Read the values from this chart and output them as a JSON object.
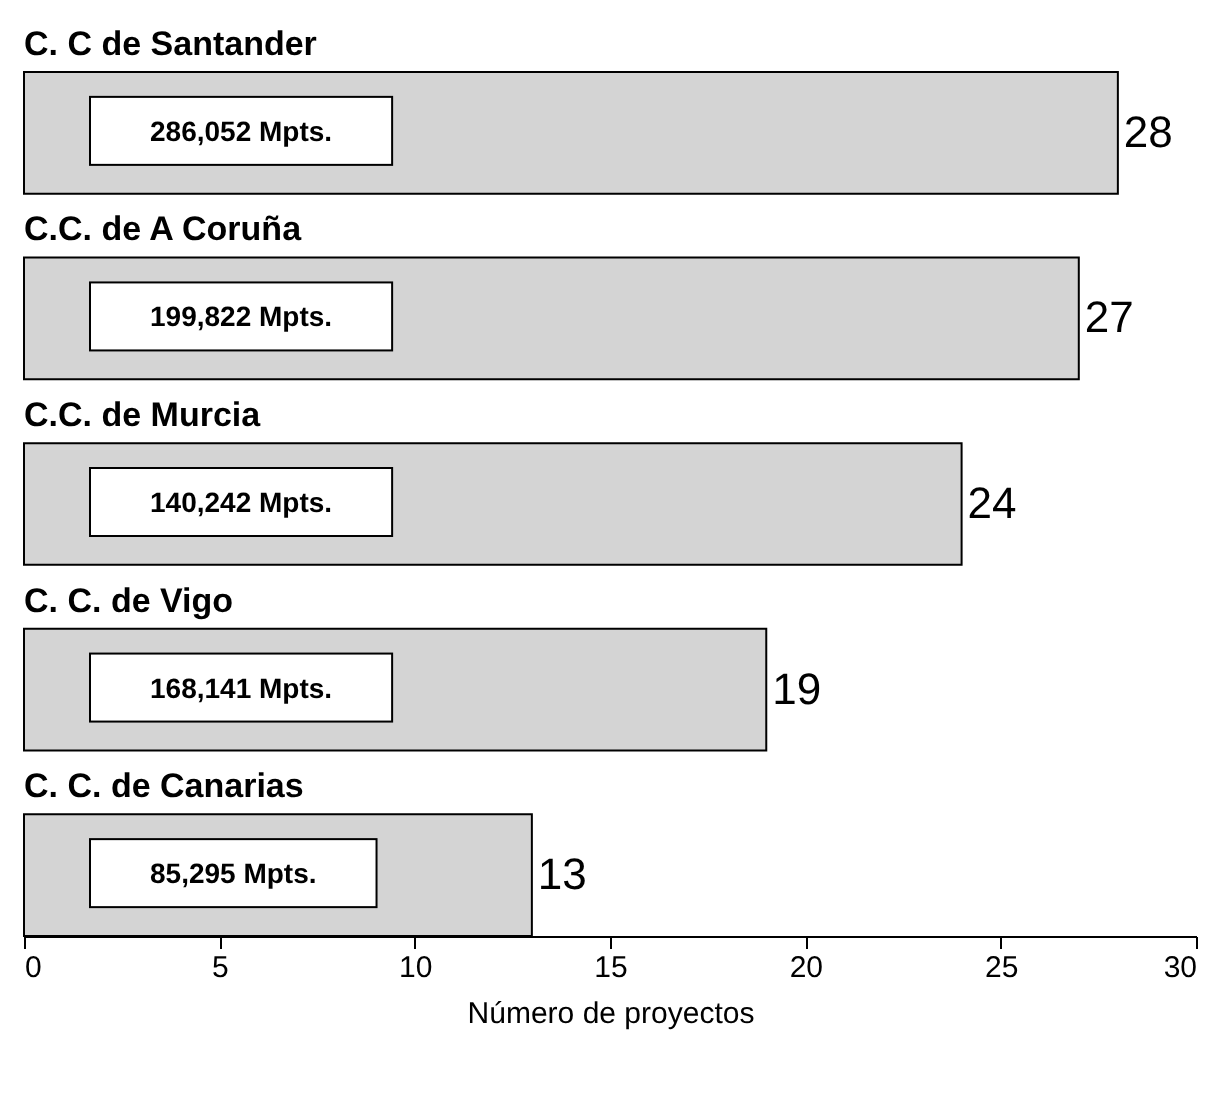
{
  "chart_data": {
    "type": "bar",
    "orientation": "horizontal",
    "xlabel": "Número de proyectos",
    "categories": [
      "C. C de Santander",
      "C.C. de A Coruña",
      "C.C. de Murcia",
      "C. C. de Vigo",
      "C. C. de Canarias"
    ],
    "values": [
      28,
      27,
      24,
      19,
      13
    ],
    "color": "#d4d4d4",
    "data_labels": true,
    "xlim": [
      0,
      30
    ],
    "xticks": [
      0,
      5,
      10,
      15,
      20,
      25,
      30
    ],
    "grid": false,
    "annotations": [
      "286,052 Mpts.",
      "199,822 Mpts.",
      "140,242 Mpts.",
      "168,141 Mpts.",
      "85,295 Mpts."
    ]
  }
}
